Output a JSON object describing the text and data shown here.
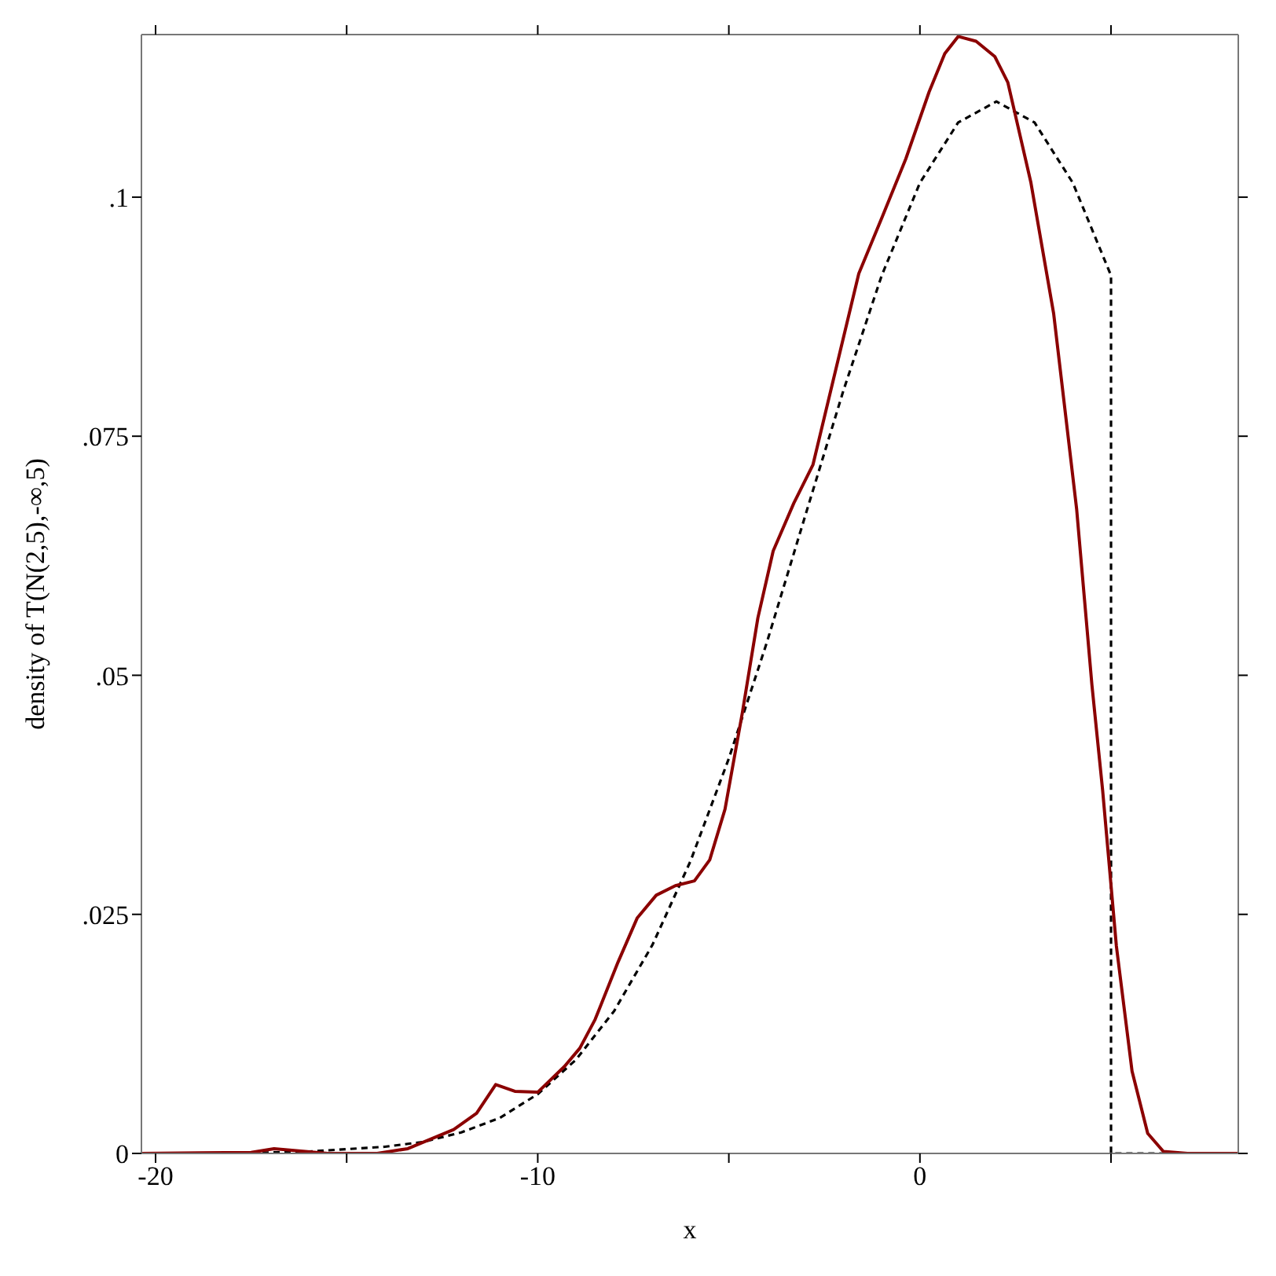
{
  "chart_data": {
    "type": "line",
    "xlabel": "x",
    "ylabel": "density of T(N(2,5),-∞,5)",
    "xlim": [
      -20.37,
      8.33
    ],
    "xticks": [
      -20,
      {
        "value": -15,
        "label": null
      },
      -10,
      {
        "value": -5,
        "label": null
      },
      0,
      {
        "value": 5,
        "label": null
      }
    ],
    "ylim": [
      0,
      0.117
    ],
    "yticks": [
      0,
      {
        "value": 0.025,
        "label": ".025"
      },
      {
        "value": 0.05,
        "label": ".05"
      },
      {
        "value": 0.075,
        "label": ".075"
      },
      {
        "value": 0.1,
        "label": ".1"
      }
    ],
    "series": [
      {
        "color": "#000000",
        "line_style": "dashed",
        "x": [
          -20.37,
          -18,
          -16,
          -14,
          -13,
          -12,
          -11,
          -10,
          -9,
          -8,
          -7,
          -6,
          -5,
          -4,
          -3,
          -2,
          -1,
          0,
          1,
          2,
          3,
          4,
          5,
          5,
          8.33
        ],
        "values": [
          0,
          0,
          0.0002,
          0.0007,
          0.0012,
          0.0022,
          0.0037,
          0.0062,
          0.0098,
          0.0149,
          0.0218,
          0.0306,
          0.0413,
          0.0535,
          0.0667,
          0.0798,
          0.0918,
          0.1015,
          0.1078,
          0.11,
          0.1078,
          0.1015,
          0.0918,
          0,
          0
        ]
      },
      {
        "color": "#8b0000",
        "line_style": "solid",
        "x": [
          -20.37,
          -17.5,
          -16.9,
          -15.5,
          -14.2,
          -13.4,
          -12.2,
          -11.6,
          -11.1,
          -10.6,
          -10,
          -9.3,
          -8.9,
          -8.5,
          -7.9,
          -7.4,
          -6.9,
          -6.4,
          -5.9,
          -5.5,
          -5.1,
          -4.65,
          -4.24,
          -3.84,
          -3.3,
          -2.8,
          -2.2,
          -1.6,
          -0.98,
          -0.37,
          0.24,
          0.65,
          1,
          1.47,
          1.96,
          2.3,
          2.9,
          3.5,
          4.1,
          4.5,
          4.78,
          5.14,
          5.55,
          5.96,
          6.37,
          7,
          8.33
        ],
        "values": [
          0,
          0.0001,
          0.0005,
          0,
          0,
          0.0005,
          0.0025,
          0.0042,
          0.0072,
          0.0065,
          0.0064,
          0.0091,
          0.011,
          0.014,
          0.02,
          0.0246,
          0.027,
          0.028,
          0.0285,
          0.0307,
          0.036,
          0.046,
          0.056,
          0.063,
          0.068,
          0.072,
          0.082,
          0.092,
          0.098,
          0.104,
          0.111,
          0.115,
          0.1168,
          0.1163,
          0.1147,
          0.112,
          0.1016,
          0.0878,
          0.0674,
          0.049,
          0.038,
          0.0217,
          0.0086,
          0.0021,
          0.0002,
          0,
          0
        ]
      }
    ]
  }
}
